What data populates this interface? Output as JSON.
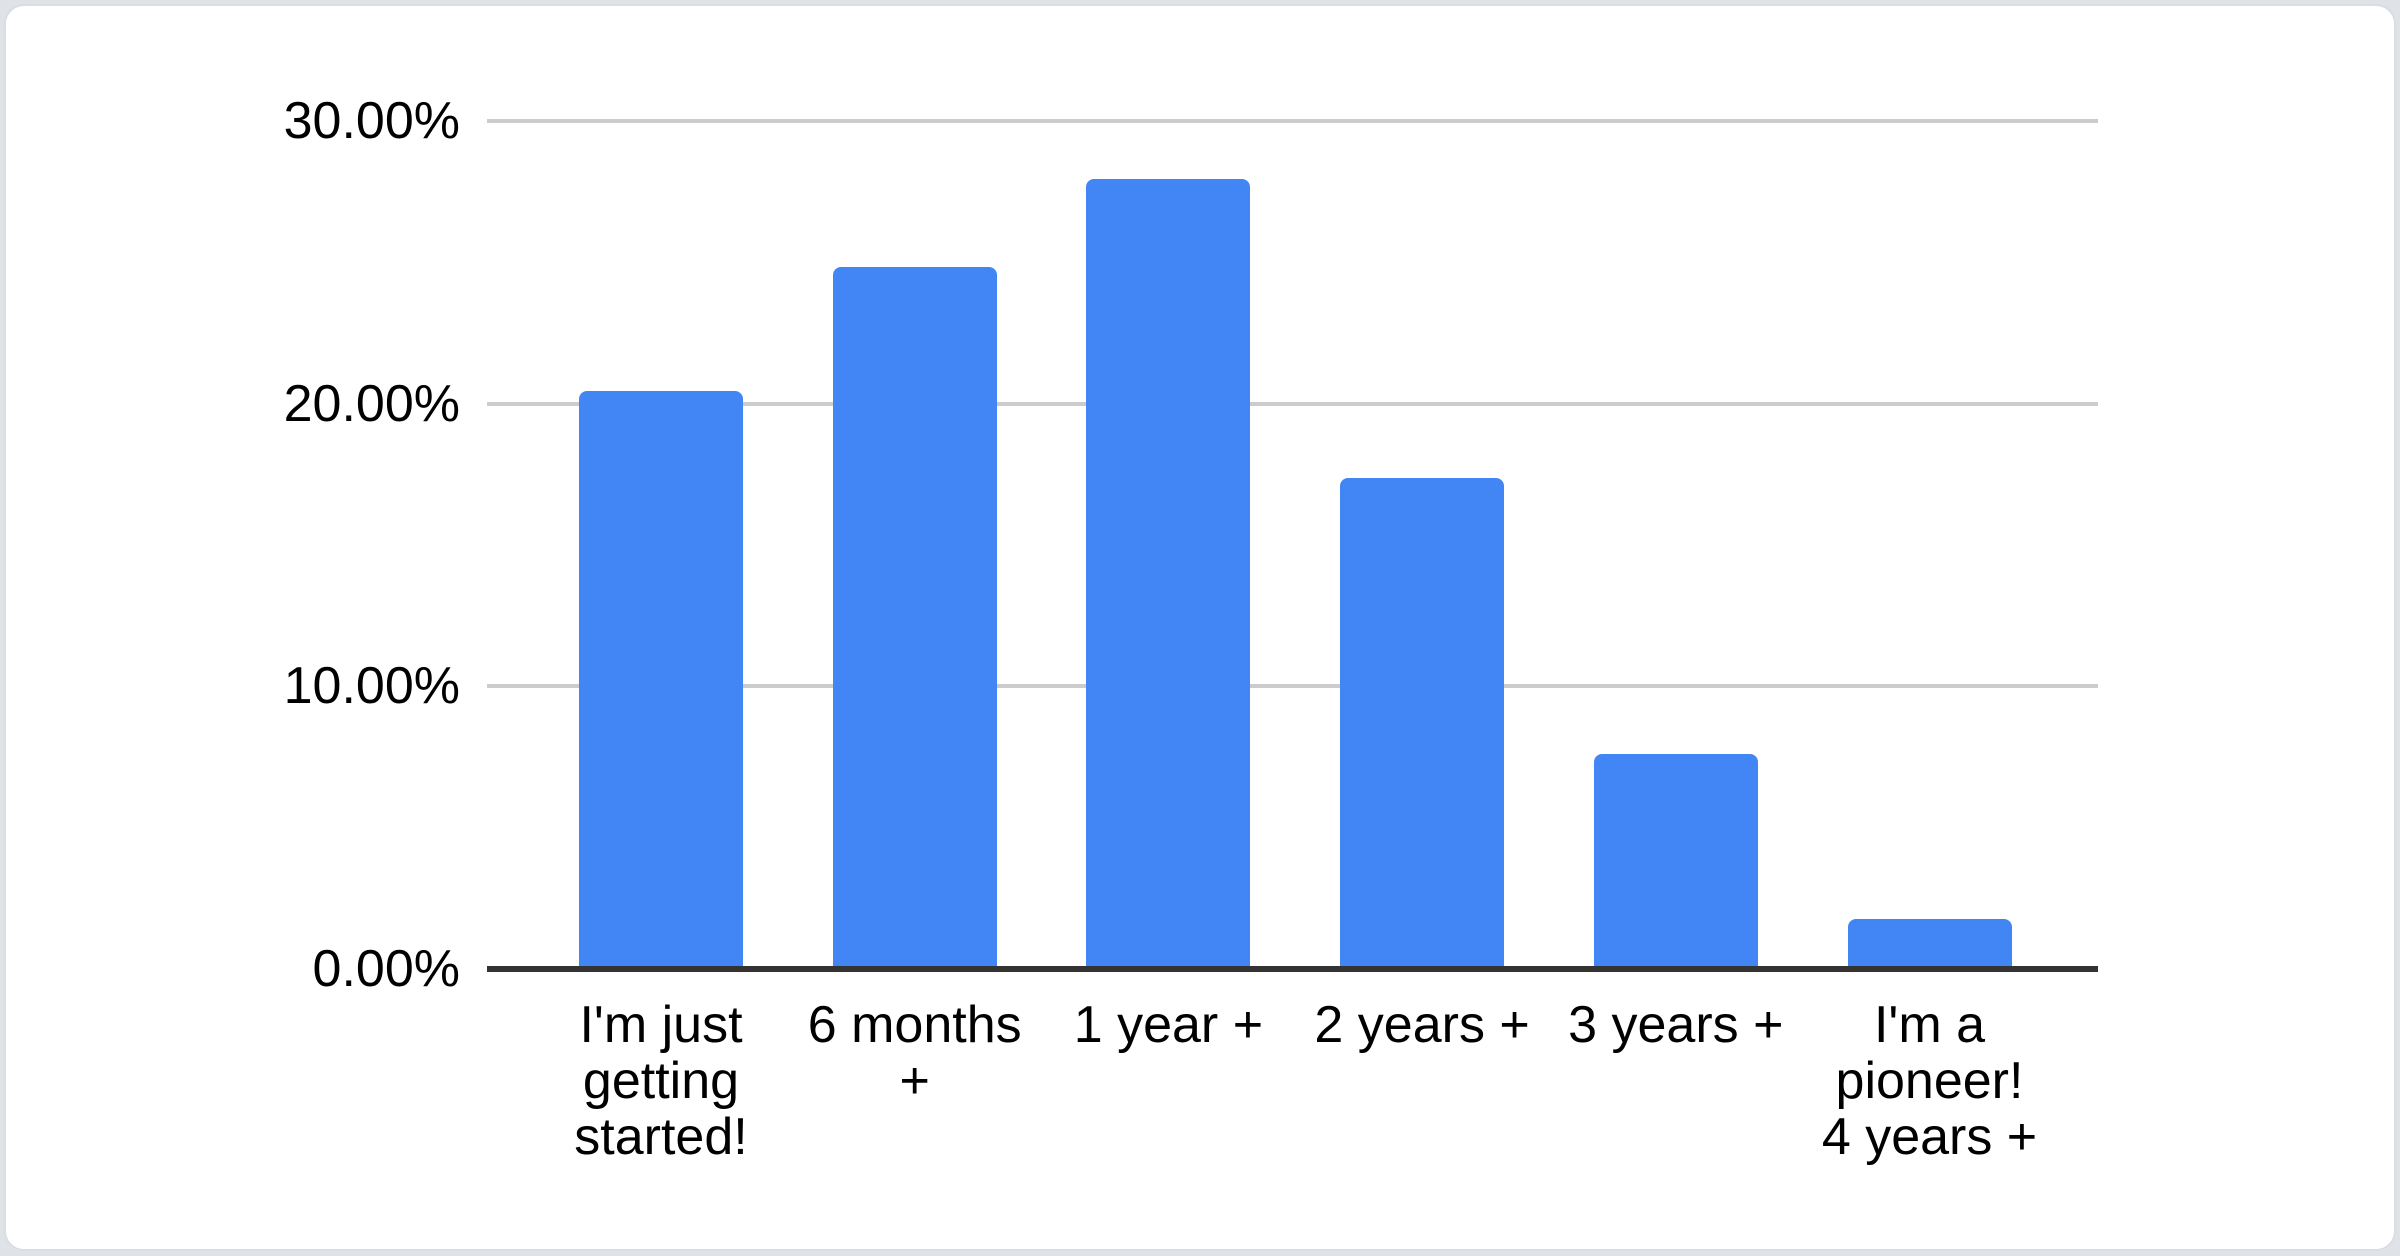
{
  "page": {
    "background_color": "#dfe3e8",
    "card_color": "#ffffff",
    "card_border_color": "#d9dee4"
  },
  "chart_data": {
    "type": "bar",
    "title": "",
    "categories": [
      "I'm just getting started!",
      "6 months +",
      "1 year +",
      "2 years +",
      "3 years +",
      "I'm a pioneer! 4 years +"
    ],
    "label_lines": [
      [
        "I'm just",
        "getting",
        "started!"
      ],
      [
        "6 months",
        "+"
      ],
      [
        "1 year +"
      ],
      [
        "2 years +"
      ],
      [
        "3 years +"
      ],
      [
        "I'm a",
        "pioneer!",
        "4 years +"
      ]
    ],
    "values": [
      20.45,
      24.84,
      27.94,
      17.36,
      7.59,
      1.77
    ],
    "value_unit": "%",
    "ylim": [
      0,
      30
    ],
    "yticks": [
      "0.00%",
      "10.00%",
      "20.00%",
      "30.00%"
    ],
    "grid": true,
    "legend": "none",
    "colors": {
      "bar": "#4285f4",
      "gridline": "#cccccc",
      "axis_line": "#333333",
      "tick_text": "#000000"
    }
  }
}
